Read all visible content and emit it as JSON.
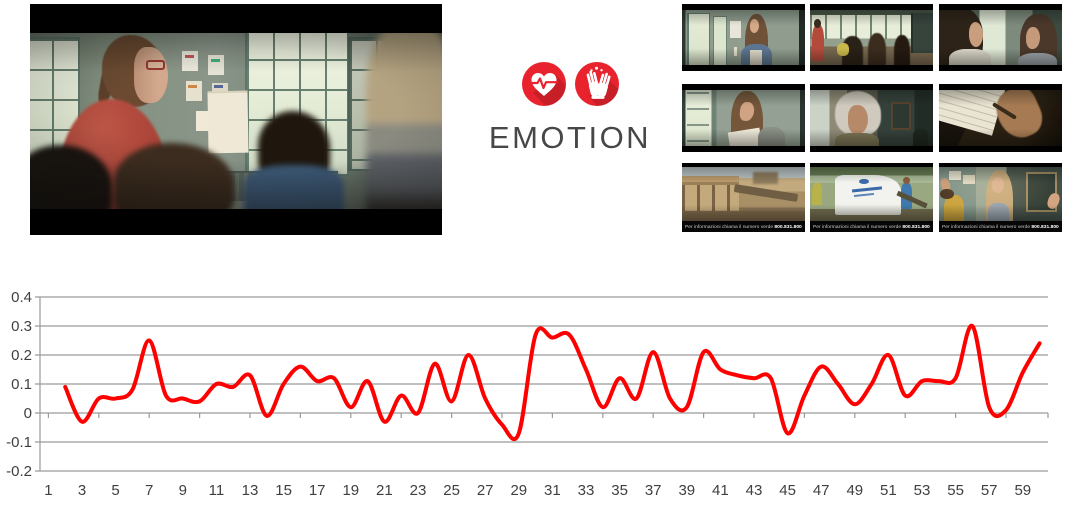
{
  "emotion_panel": {
    "label": "EMOTION",
    "accent_color": "#e8232e",
    "icons": [
      {
        "name": "heart-pulse-icon"
      },
      {
        "name": "applause-hands-icon"
      }
    ]
  },
  "main_still": {
    "scene": "classroom-teacher-profile"
  },
  "thumbnails": {
    "caption_text": "Per informazioni chiama il numero verde",
    "caption_number": "800.831.800",
    "items": [
      {
        "scene": "girl-by-window"
      },
      {
        "scene": "classroom-wide-shot"
      },
      {
        "scene": "two-girls-closeup"
      },
      {
        "scene": "girl-reading-letter"
      },
      {
        "scene": "elderly-woman-closeup"
      },
      {
        "scene": "hand-writing-letter"
      },
      {
        "scene": "ruined-buildings"
      },
      {
        "scene": "unhcr-tent"
      },
      {
        "scene": "classroom-girl-standing"
      }
    ]
  },
  "chart_data": {
    "type": "line",
    "title": "",
    "xlabel": "",
    "ylabel": "",
    "smoothed": true,
    "grid": "horizontal",
    "gridline_color": "#9a9a9a",
    "axis_label_color": "#3f3f3f",
    "ylim": [
      -0.2,
      0.4
    ],
    "y_ticks": [
      0.4,
      0.3,
      0.2,
      0.1,
      0,
      -0.1,
      -0.2
    ],
    "x_categories": 60,
    "x_tick_labels": [
      "1",
      "3",
      "5",
      "7",
      "9",
      "11",
      "13",
      "15",
      "17",
      "19",
      "21",
      "23",
      "25",
      "27",
      "29",
      "31",
      "33",
      "35",
      "37",
      "39",
      "41",
      "43",
      "45",
      "47",
      "49",
      "51",
      "53",
      "55",
      "57",
      "59"
    ],
    "series": [
      {
        "name": "emotion",
        "color": "#ff0000",
        "x_start": 2,
        "values": [
          0.09,
          -0.03,
          0.05,
          0.05,
          0.08,
          0.25,
          0.06,
          0.05,
          0.04,
          0.1,
          0.09,
          0.13,
          -0.01,
          0.1,
          0.16,
          0.11,
          0.12,
          0.02,
          0.11,
          -0.03,
          0.06,
          0.0,
          0.17,
          0.04,
          0.2,
          0.05,
          -0.04,
          -0.07,
          0.27,
          0.26,
          0.27,
          0.15,
          0.02,
          0.12,
          0.05,
          0.21,
          0.05,
          0.02,
          0.21,
          0.15,
          0.13,
          0.12,
          0.12,
          -0.07,
          0.06,
          0.16,
          0.1,
          0.03,
          0.1,
          0.2,
          0.06,
          0.11,
          0.11,
          0.12,
          0.3,
          0.02,
          0.01,
          0.14,
          0.24
        ]
      }
    ]
  }
}
